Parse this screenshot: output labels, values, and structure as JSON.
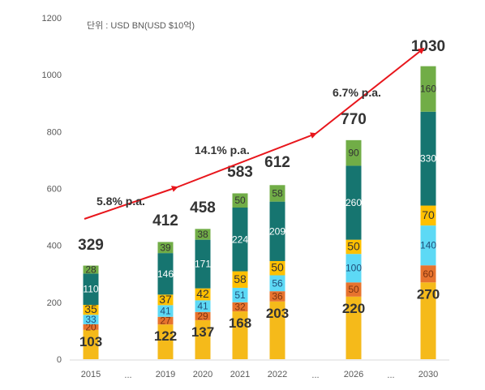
{
  "chart_data": {
    "type": "bar",
    "stacked": true,
    "unit_note": "단위 : USD BN(USD $10억)",
    "categories": [
      "2015",
      "...",
      "2019",
      "2020",
      "2021",
      "2022",
      "...",
      "2026",
      "...",
      "2030"
    ],
    "gap_categories": [
      1,
      6,
      8
    ],
    "ylim": [
      0,
      1200
    ],
    "yticks": [
      0,
      200,
      400,
      600,
      800,
      1000,
      1200
    ],
    "grid": false,
    "series": [
      {
        "color": "#F5BA1A",
        "values": [
          103,
          null,
          122,
          137,
          168,
          203,
          null,
          220,
          null,
          270
        ]
      },
      {
        "color": "#E7732E",
        "values": [
          20,
          null,
          27,
          29,
          32,
          36,
          null,
          50,
          null,
          60
        ]
      },
      {
        "color": "#5DD9F5",
        "values": [
          33,
          null,
          41,
          41,
          51,
          56,
          null,
          100,
          null,
          140
        ]
      },
      {
        "color": "#FFC000",
        "values": [
          35,
          null,
          37,
          42,
          58,
          50,
          null,
          50,
          null,
          70
        ]
      },
      {
        "color": "#167570",
        "values": [
          110,
          null,
          146,
          171,
          224,
          209,
          null,
          260,
          null,
          330
        ]
      },
      {
        "color": "#71AD47",
        "values": [
          28,
          null,
          39,
          38,
          50,
          58,
          null,
          90,
          null,
          160
        ]
      }
    ],
    "totals": [
      329,
      null,
      412,
      458,
      583,
      612,
      null,
      770,
      null,
      1030
    ],
    "growth_annotations": [
      {
        "label": "5.8% p.a.",
        "from_year": "2015",
        "to_year": "2019"
      },
      {
        "label": "14.1% p.a.",
        "from_year": "2019",
        "to_year": "2022"
      },
      {
        "label": "6.7% p.a.",
        "from_year": "2022",
        "to_year": "2030"
      }
    ],
    "arrow_color": "#E8161C"
  }
}
